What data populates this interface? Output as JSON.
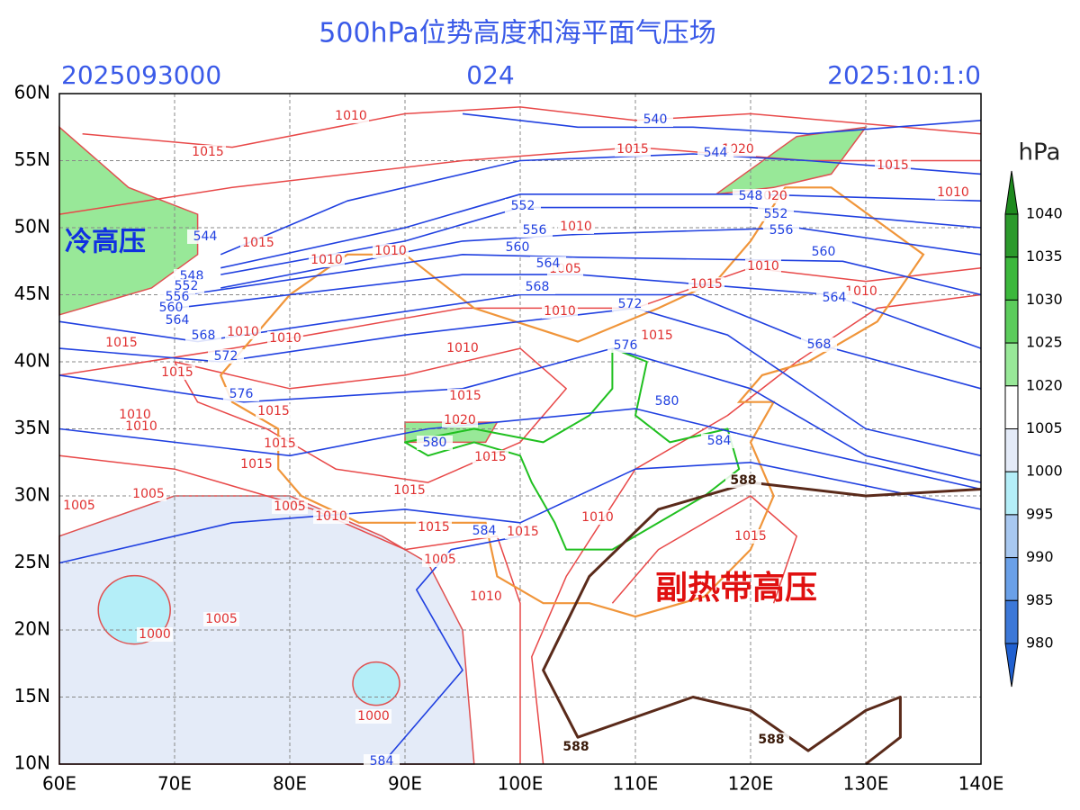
{
  "header": {
    "title": "500hPa位势高度和海平面气压场",
    "run": "2025093000",
    "lead": "024",
    "valid": "2025:10:1:0"
  },
  "axes": {
    "xticks": [
      "60E",
      "70E",
      "80E",
      "90E",
      "100E",
      "110E",
      "120E",
      "130E",
      "140E"
    ],
    "yticks": [
      "10N",
      "15N",
      "20N",
      "25N",
      "30N",
      "35N",
      "40N",
      "45N",
      "50N",
      "55N",
      "60N"
    ]
  },
  "colorbar": {
    "unit": "hPa",
    "labels": [
      1040,
      1035,
      1030,
      1025,
      1020,
      1005,
      1000,
      995,
      990,
      985,
      980
    ]
  },
  "annotations": {
    "cold_high": "冷高压",
    "subtropical_high": "副热带高压"
  },
  "isobar_labels": [
    1010,
    1015,
    1015,
    1015,
    1010,
    1015,
    1010,
    1010,
    1010,
    1005,
    1010,
    1015,
    1010,
    1015,
    1010,
    1010,
    1010,
    1015,
    1015,
    1015,
    1020,
    1015,
    1010,
    1010,
    1015,
    1015,
    1015,
    1005,
    1005,
    1005,
    1015,
    1010,
    1015,
    1005,
    1015,
    1010,
    1015,
    1010,
    1000,
    1005,
    1000,
    1020,
    1020,
    1010
  ],
  "height_labels": [
    540,
    544,
    548,
    552,
    556,
    560,
    564,
    568,
    572,
    576,
    580,
    584,
    584,
    584,
    552,
    556,
    560,
    564,
    568,
    544,
    548,
    552,
    556,
    560,
    564,
    568,
    572,
    576,
    580
  ],
  "subtropical_labels": [
    588,
    588,
    588
  ]
}
